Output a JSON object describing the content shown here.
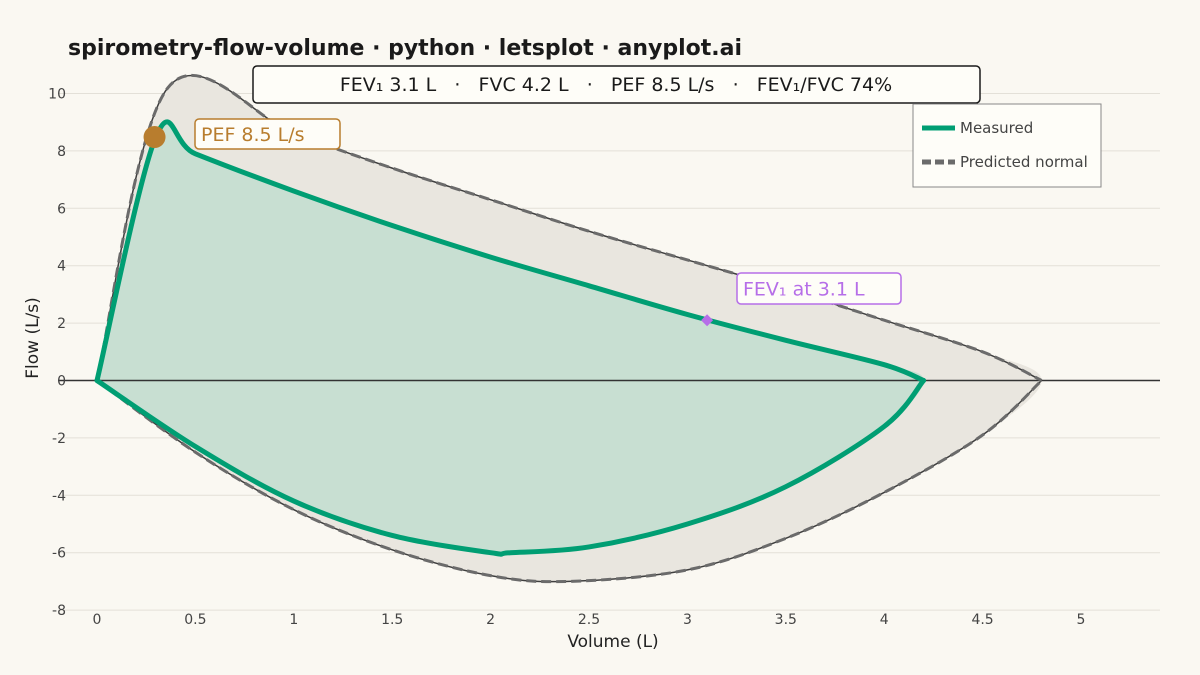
{
  "chart_data": {
    "type": "line",
    "title": "spirometry-flow-volume · python · letsplot · anyplot.ai",
    "summary": "FEV₁ 3.1 L   ·   FVC 4.2 L   ·   PEF 8.5 L/s   ·   FEV₁/FVC 74%",
    "xlabel": "Volume (L)",
    "ylabel": "Flow (L/s)",
    "xlim": [
      -0.2,
      5.4
    ],
    "ylim": [
      -8,
      10.4
    ],
    "xticks": [
      0,
      0.5,
      1,
      1.5,
      2,
      2.5,
      3,
      3.5,
      4,
      4.5,
      5
    ],
    "yticks": [
      -8,
      -6,
      -4,
      -2,
      0,
      2,
      4,
      6,
      8,
      10
    ],
    "grid": true,
    "legend_position": "top-right",
    "series": [
      {
        "name": "Measured",
        "color": "#009e73",
        "style": "solid",
        "expiratory": [
          [
            0,
            0
          ],
          [
            0.3,
            8.5
          ],
          [
            0.5,
            7.9
          ],
          [
            1.0,
            6.6
          ],
          [
            1.5,
            5.4
          ],
          [
            2.0,
            4.3
          ],
          [
            2.5,
            3.3
          ],
          [
            3.0,
            2.3
          ],
          [
            3.5,
            1.4
          ],
          [
            4.0,
            0.55
          ],
          [
            4.2,
            0
          ]
        ],
        "inspiratory": [
          [
            0,
            0
          ],
          [
            0.5,
            -2.3
          ],
          [
            1.0,
            -4.2
          ],
          [
            1.5,
            -5.4
          ],
          [
            2.0,
            -6.0
          ],
          [
            2.1,
            -6.0
          ],
          [
            2.5,
            -5.8
          ],
          [
            3.0,
            -5.0
          ],
          [
            3.5,
            -3.7
          ],
          [
            4.0,
            -1.6
          ],
          [
            4.2,
            0
          ]
        ]
      },
      {
        "name": "Predicted normal",
        "color": "#555555",
        "style": "dashed",
        "expiratory": [
          [
            0,
            0
          ],
          [
            0.36,
            10.2
          ],
          [
            1.0,
            8.6
          ],
          [
            1.5,
            7.4
          ],
          [
            2.0,
            6.3
          ],
          [
            2.5,
            5.2
          ],
          [
            3.0,
            4.2
          ],
          [
            3.5,
            3.2
          ],
          [
            4.0,
            2.1
          ],
          [
            4.5,
            1.0
          ],
          [
            4.8,
            0
          ]
        ],
        "inspiratory": [
          [
            0,
            0
          ],
          [
            0.5,
            -2.5
          ],
          [
            1.0,
            -4.5
          ],
          [
            1.5,
            -5.9
          ],
          [
            2.0,
            -6.8
          ],
          [
            2.4,
            -7.0
          ],
          [
            3.0,
            -6.6
          ],
          [
            3.5,
            -5.5
          ],
          [
            4.0,
            -3.9
          ],
          [
            4.5,
            -1.9
          ],
          [
            4.8,
            0
          ]
        ]
      }
    ],
    "annotations": [
      {
        "label": "PEF 8.5 L/s",
        "x": 0.3,
        "y": 8.5,
        "color": "#b87d2e",
        "marker": "circle"
      },
      {
        "label": "FEV₁ at 3.1 L",
        "x": 3.1,
        "y": 2.1,
        "color": "#b66ee8",
        "marker": "diamond"
      }
    ]
  }
}
